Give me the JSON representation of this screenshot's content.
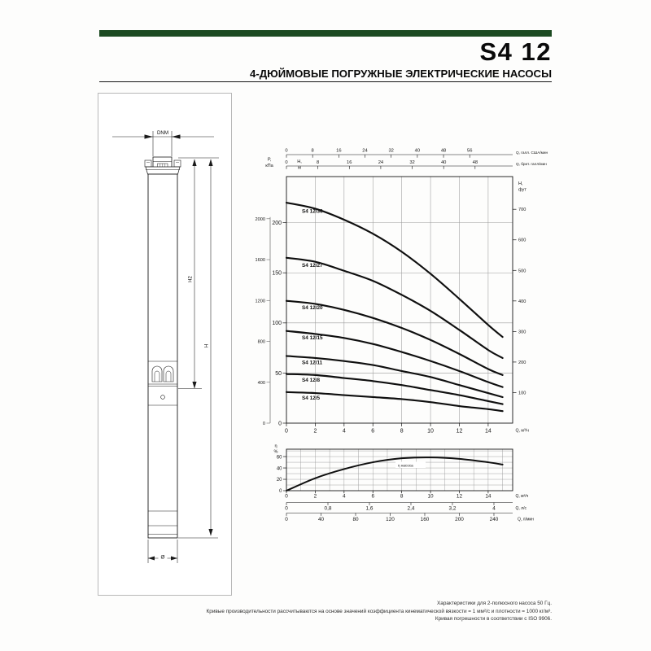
{
  "header": {
    "title": "S4 12",
    "subtitle": "4-ДЮЙМОВЫЕ ПОГРУЖНЫЕ ЭЛЕКТРИЧЕСКИЕ НАСОСЫ"
  },
  "colors": {
    "accent_green": "#1c4a21",
    "ink": "#141414",
    "grid": "#9a9a9a"
  },
  "drawing": {
    "labels": {
      "dnm": "DNM",
      "h2": "H2",
      "h": "H",
      "diameter": "Ø"
    }
  },
  "chart_data": [
    {
      "type": "line",
      "x": [
        0,
        2,
        4,
        6,
        8,
        10,
        12,
        14,
        15
      ],
      "series": [
        {
          "name": "S4 12/36",
          "values": [
            220,
            214,
            203,
            189,
            171,
            149,
            124,
            98,
            86
          ]
        },
        {
          "name": "S4 12/27",
          "values": [
            165,
            161,
            152,
            142,
            128,
            112,
            93,
            73,
            65
          ]
        },
        {
          "name": "S4 12/20",
          "values": [
            122,
            119,
            113,
            105,
            95,
            83,
            69,
            54,
            48
          ]
        },
        {
          "name": "S4 12/15",
          "values": [
            92,
            89,
            85,
            79,
            71,
            62,
            52,
            41,
            36
          ]
        },
        {
          "name": "S4 12/11",
          "values": [
            67,
            65,
            62,
            58,
            52,
            46,
            38,
            30,
            26
          ]
        },
        {
          "name": "S4 12/8",
          "values": [
            49,
            48,
            45,
            42,
            38,
            33,
            28,
            22,
            19
          ]
        },
        {
          "name": "S4 12/5",
          "values": [
            31,
            30,
            28,
            26,
            24,
            21,
            17,
            14,
            12
          ]
        }
      ],
      "xlabel": "Q, м³/ч",
      "ylabel": "Н, м",
      "ylabel_lines": [
        "Н,",
        "м"
      ],
      "xlim": [
        0,
        15.7
      ],
      "ylim": [
        0,
        246
      ],
      "x_ticks": [
        0,
        2,
        4,
        6,
        8,
        10,
        12,
        14
      ],
      "y_ticks": [
        0,
        50,
        100,
        150,
        200
      ],
      "grid": true,
      "legend_position": "on-curve",
      "secondary_axes": {
        "us_gpm": {
          "label": "Q, галл. США/мин",
          "ticks": [
            0,
            8,
            16,
            24,
            32,
            40,
            48,
            56
          ],
          "per_m3h": 4.4029
        },
        "imp_gpm": {
          "label": "Q, брит. галл/мин",
          "ticks": [
            0,
            8,
            16,
            24,
            32,
            40,
            48
          ],
          "per_m3h": 3.6662
        },
        "kpa": {
          "label": "Р, кПа",
          "label_lines": [
            "Р,",
            "кПа"
          ],
          "ticks": [
            0,
            400,
            800,
            1200,
            1600,
            2000
          ],
          "m_per_unit": 0.10197
        },
        "ft": {
          "label": "Н, фут",
          "label_lines": [
            "Н,",
            "фут"
          ],
          "ticks": [
            100,
            200,
            300,
            400,
            500,
            600,
            700
          ],
          "m_per_unit": 0.3048
        }
      }
    },
    {
      "type": "line",
      "x": [
        0,
        2,
        4,
        6,
        8,
        10,
        12,
        14,
        15
      ],
      "series": [
        {
          "name": "η насоса",
          "values": [
            0,
            22,
            38,
            50,
            57,
            58.5,
            56,
            50,
            46
          ]
        }
      ],
      "xlabel": "Q, м³/ч",
      "ylabel": "η %",
      "ylabel_lines": [
        "η",
        "%"
      ],
      "xlim": [
        0,
        15.7
      ],
      "ylim": [
        0,
        73
      ],
      "x_ticks": [
        0,
        2,
        4,
        6,
        8,
        10,
        12,
        14
      ],
      "y_ticks": [
        0,
        20,
        40,
        60
      ],
      "grid": true,
      "secondary_axes": {
        "l_s": {
          "label": "Q, л/с",
          "ticks": [
            0,
            0.8,
            1.6,
            2.4,
            3.2,
            4
          ],
          "tick_labels": [
            "0",
            "0,8",
            "1,6",
            "2,4",
            "3,2",
            "4"
          ],
          "m3h_per_unit": 3.6
        },
        "l_min": {
          "label": "Q, л/мин",
          "ticks": [
            0,
            40,
            80,
            120,
            160,
            200,
            240
          ],
          "m3h_per_unit": 0.06
        }
      }
    }
  ],
  "footer": {
    "lines": [
      "Характеристики для 2-полюсного насоса 50 Гц.",
      "Кривые производительности рассчитываются на основе значений коэффициента кинематической вязкости = 1 мм²/с и плотности = 1000 кг/м³.",
      "Кривая погрешности в соответствии с ISO 9906."
    ]
  }
}
